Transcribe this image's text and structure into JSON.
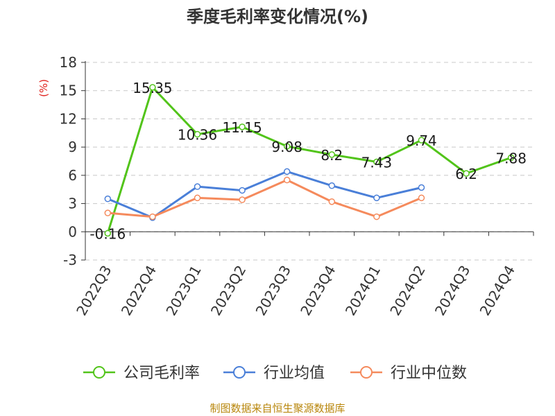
{
  "chart_data": {
    "type": "line",
    "title": "季度毛利率变化情况(%)",
    "ylabel": "(%)",
    "xlabel": "",
    "categories": [
      "2022Q3",
      "2022Q4",
      "2023Q1",
      "2023Q2",
      "2023Q3",
      "2023Q4",
      "2024Q1",
      "2024Q2",
      "2024Q3",
      "2024Q4"
    ],
    "yticks": [
      -3,
      0,
      3,
      6,
      9,
      12,
      15,
      18
    ],
    "ylim": [
      -3,
      18
    ],
    "grid": true,
    "legend_position": "bottom",
    "series": [
      {
        "name": "公司毛利率",
        "color": "#52c41a",
        "values": [
          -0.16,
          15.35,
          10.36,
          11.15,
          9.08,
          8.2,
          7.43,
          9.74,
          6.2,
          7.88
        ],
        "labels": [
          "-0.16",
          "15.35",
          "10.36",
          "11.15",
          "9.08",
          "8.2",
          "7.43",
          "9.74",
          "6.2",
          "7.88"
        ]
      },
      {
        "name": "行业均值",
        "color": "#4a7fd8",
        "values": [
          3.5,
          1.5,
          4.8,
          4.4,
          6.4,
          4.9,
          3.6,
          4.7,
          null,
          null
        ]
      },
      {
        "name": "行业中位数",
        "color": "#f58a5c",
        "values": [
          2.0,
          1.6,
          3.6,
          3.4,
          5.5,
          3.2,
          1.6,
          3.6,
          null,
          null
        ]
      }
    ]
  },
  "source": "制图数据来自恒生聚源数据库"
}
